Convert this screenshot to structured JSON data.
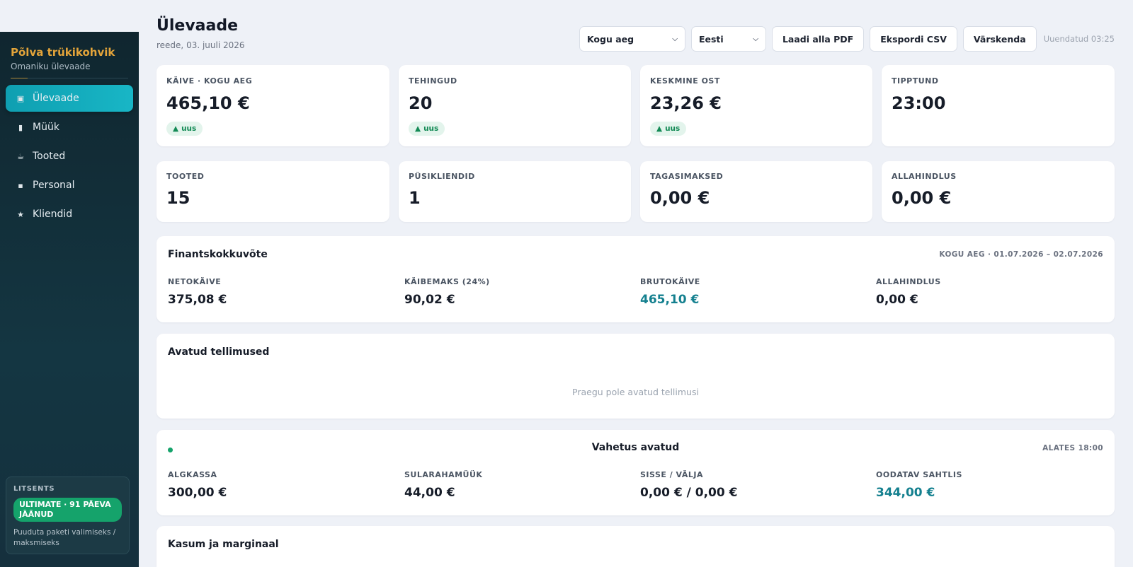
{
  "sidebar": {
    "brand_name": "Põlva trükikohvik",
    "brand_sub": "Omaniku ülevaade",
    "items": [
      {
        "label": "Ülevaade",
        "icon": "dashboard-icon"
      },
      {
        "label": "Müük",
        "icon": "receipt-icon"
      },
      {
        "label": "Tooted",
        "icon": "coffee-icon"
      },
      {
        "label": "Personal",
        "icon": "staff-icon"
      },
      {
        "label": "Kliendid",
        "icon": "star-icon"
      }
    ],
    "license": {
      "title": "LITSENTS",
      "badge": "ULTIMATE · 91 PÄEVA JÄÄNUD",
      "note": "Puuduta paketi valimiseks / maksmiseks"
    }
  },
  "header": {
    "title": "Ülevaade",
    "date": "reede, 03. juuli 2026",
    "period_select": "Kogu aeg",
    "language_select": "Eesti",
    "pdf_button": "Laadi alla PDF",
    "csv_button": "Ekspordi CSV",
    "refresh_button": "Värskenda",
    "updated": "Uuendatud 03:25"
  },
  "stats_top": [
    {
      "label": "KÄIVE · KOGU AEG",
      "value": "465,10 €",
      "delta": "uus"
    },
    {
      "label": "TEHINGUD",
      "value": "20",
      "delta": "uus"
    },
    {
      "label": "KESKMINE OST",
      "value": "23,26 €",
      "delta": "uus"
    },
    {
      "label": "TIPPTUND",
      "value": "23:00"
    }
  ],
  "stats_bottom": [
    {
      "label": "TOOTED",
      "value": "15"
    },
    {
      "label": "PÜSIKLIENDID",
      "value": "1"
    },
    {
      "label": "TAGASIMAKSED",
      "value": "0,00 €"
    },
    {
      "label": "ALLAHINDLUS",
      "value": "0,00 €"
    }
  ],
  "finance": {
    "title": "Finantskokkuvõte",
    "meta": "KOGU AEG · 01.07.2026 – 02.07.2026",
    "metrics": [
      {
        "label": "NETOKÄIVE",
        "value": "375,08 €"
      },
      {
        "label": "KÄIBEMAKS (24%)",
        "value": "90,02 €"
      },
      {
        "label": "BRUTOKÄIVE",
        "value": "465,10 €"
      },
      {
        "label": "ALLAHINDLUS",
        "value": "0,00 €"
      }
    ]
  },
  "open_orders": {
    "title": "Avatud tellimused",
    "empty": "Praegu pole avatud tellimusi"
  },
  "shift": {
    "title": "Vahetus avatud",
    "meta": "ALATES 18:00",
    "metrics": [
      {
        "label": "ALGKASSA",
        "value": "300,00 €"
      },
      {
        "label": "SULARAHAMÜÜK",
        "value": "44,00 €"
      },
      {
        "label": "SISSE / VÄLJA",
        "value": "0,00 € / 0,00 €"
      },
      {
        "label": "OODATAV SAHTLIS",
        "value": "344,00 €"
      }
    ]
  },
  "profit": {
    "title": "Kasum ja marginaal"
  },
  "colors": {
    "accent": "#14808f",
    "brand": "#e3a43a",
    "positive": "#15a36b",
    "sidebar": "#143642"
  }
}
